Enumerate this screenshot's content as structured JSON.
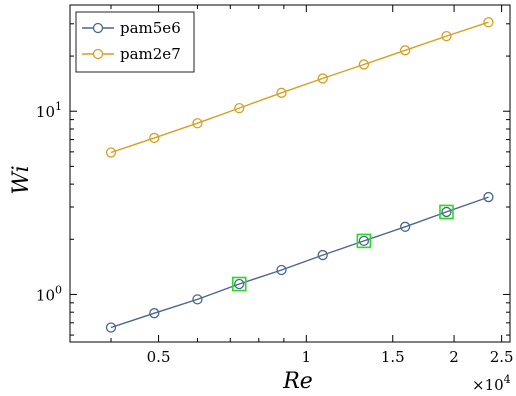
{
  "chart_data": {
    "type": "line",
    "xlabel": "Re",
    "ylabel": "Wi",
    "x_multiplier_label": "×10",
    "x_multiplier_exponent": "4",
    "xscale": "log",
    "yscale": "log",
    "xlim": [
      0.33,
      2.6
    ],
    "ylim": [
      0.55,
      38
    ],
    "x_ticks": [
      {
        "value": 0.5,
        "label": "0.5"
      },
      {
        "value": 1,
        "label": "1"
      },
      {
        "value": 1.5,
        "label": "1.5"
      },
      {
        "value": 2,
        "label": "2"
      },
      {
        "value": 2.5,
        "label": "2.5"
      }
    ],
    "y_ticks": [
      {
        "value": 1,
        "base": "10",
        "exp": "0"
      },
      {
        "value": 10,
        "base": "10",
        "exp": "1"
      }
    ],
    "legend_position": "top-left",
    "grid": false,
    "series": [
      {
        "name": "pam5e6",
        "color": "#4a6591",
        "marker": "circle",
        "x": [
          0.4,
          0.49,
          0.6,
          0.73,
          0.89,
          1.08,
          1.31,
          1.59,
          1.93,
          2.35
        ],
        "y": [
          0.66,
          0.79,
          0.94,
          1.14,
          1.36,
          1.64,
          1.96,
          2.34,
          2.82,
          3.4
        ]
      },
      {
        "name": "pam2e7",
        "color": "#d99e21",
        "marker": "circle",
        "x": [
          0.4,
          0.49,
          0.6,
          0.73,
          0.89,
          1.08,
          1.31,
          1.59,
          1.93,
          2.35
        ],
        "y": [
          5.95,
          7.15,
          8.6,
          10.4,
          12.6,
          15.1,
          18.0,
          21.5,
          25.7,
          30.6
        ]
      }
    ],
    "highlights": {
      "color": "#22dd22",
      "marker": "square",
      "points": [
        {
          "x": 0.73,
          "y": 1.14
        },
        {
          "x": 1.31,
          "y": 1.96
        },
        {
          "x": 1.93,
          "y": 2.82
        }
      ]
    }
  }
}
